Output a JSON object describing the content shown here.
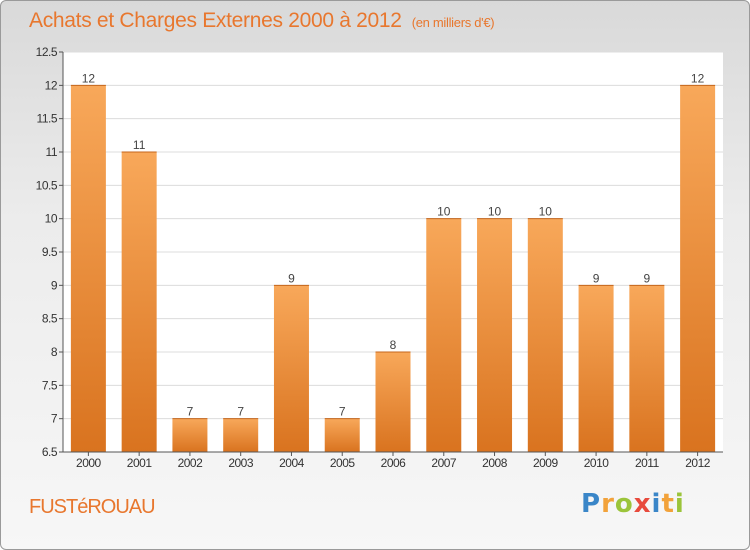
{
  "title": "Achats et Charges Externes 2000 à 2012",
  "unit_label": "(en milliers d'€)",
  "commune": "FUSTéROUAU",
  "logo": {
    "letters": [
      "P",
      "r",
      "o",
      "x",
      "i",
      "t",
      "i"
    ],
    "colors": [
      "#3a86c8",
      "#f2a23a",
      "#9bc43a",
      "#e84a3c",
      "#3a86c8",
      "#f2a23a",
      "#9bc43a"
    ]
  },
  "colors": {
    "accent": "#e8772e",
    "bar_light": "#f8a85a",
    "bar_dark": "#d9731f"
  },
  "chart_data": {
    "type": "bar",
    "categories": [
      "2000",
      "2001",
      "2002",
      "2003",
      "2004",
      "2005",
      "2006",
      "2007",
      "2008",
      "2009",
      "2010",
      "2011",
      "2012"
    ],
    "values": [
      12,
      11,
      7,
      7,
      9,
      7,
      8,
      10,
      10,
      10,
      9,
      9,
      12
    ],
    "data_labels": [
      "12",
      "11",
      "7",
      "7",
      "9",
      "7",
      "8",
      "10",
      "10",
      "10",
      "9",
      "9",
      "12"
    ],
    "yticks": [
      "6.5",
      "7",
      "7.5",
      "8",
      "8.5",
      "9",
      "9.5",
      "10",
      "10.5",
      "11",
      "11.5",
      "12",
      "12.5"
    ],
    "ylim": [
      6.5,
      12.5
    ],
    "grid": true
  }
}
